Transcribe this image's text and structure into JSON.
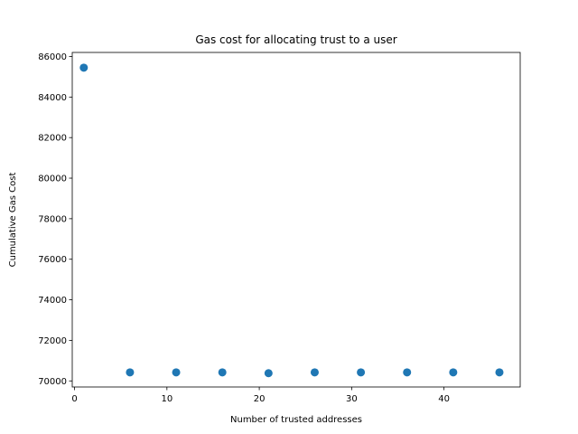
{
  "chart_data": {
    "type": "scatter",
    "title": "Gas cost for allocating trust to a user",
    "xlabel": "Number of trusted addresses",
    "ylabel": "Cumulative Gas Cost",
    "x": [
      1,
      6,
      11,
      16,
      21,
      26,
      31,
      36,
      41,
      46
    ],
    "y": [
      85450,
      70420,
      70420,
      70420,
      70380,
      70420,
      70420,
      70420,
      70420,
      70420
    ],
    "xlim": [
      -0.25,
      48.25
    ],
    "ylim": [
      69700,
      86200
    ],
    "xticks": [
      0,
      10,
      20,
      30,
      40
    ],
    "yticks": [
      70000,
      72000,
      74000,
      76000,
      78000,
      80000,
      82000,
      84000,
      86000
    ],
    "grid": false,
    "marker_color": "#1f77b4"
  }
}
